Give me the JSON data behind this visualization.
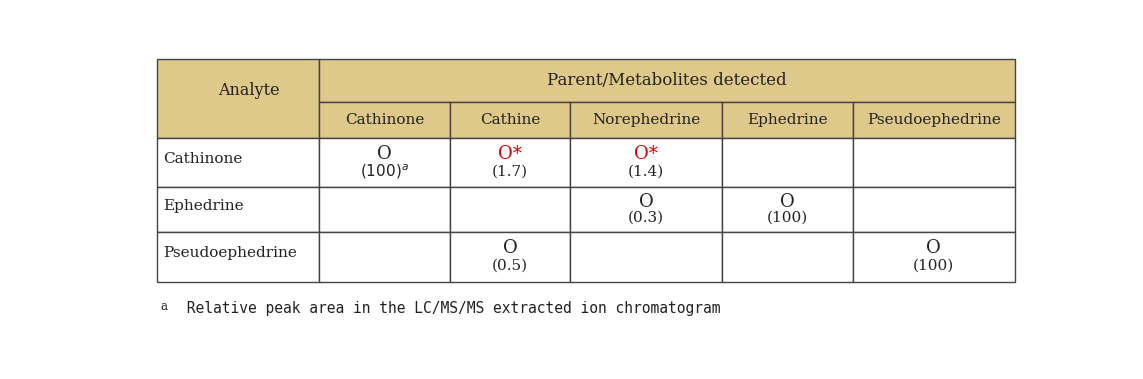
{
  "header_bg": "#DEC98B",
  "body_bg": "#FFFFFF",
  "border_color": "#444444",
  "red_color": "#DD0000",
  "black_color": "#222222",
  "title": "Parent/Metabolites detected",
  "col_header": [
    "Cathinone",
    "Cathine",
    "Norephedrine",
    "Ephedrine",
    "Pseudoephedrine"
  ],
  "row_header": [
    "Cathinone",
    "Ephedrine",
    "Pseudoephedrine"
  ],
  "footnote_text": " Relative peak area in the LC/MS/MS extracted ion chromatogram",
  "footnote_sup": "a",
  "fig_width": 11.43,
  "fig_height": 3.79,
  "col_widths_rel": [
    1.55,
    1.25,
    1.15,
    1.45,
    1.25,
    1.55
  ],
  "row_heights_rel": [
    1.0,
    0.85,
    1.15,
    1.05,
    1.15
  ]
}
